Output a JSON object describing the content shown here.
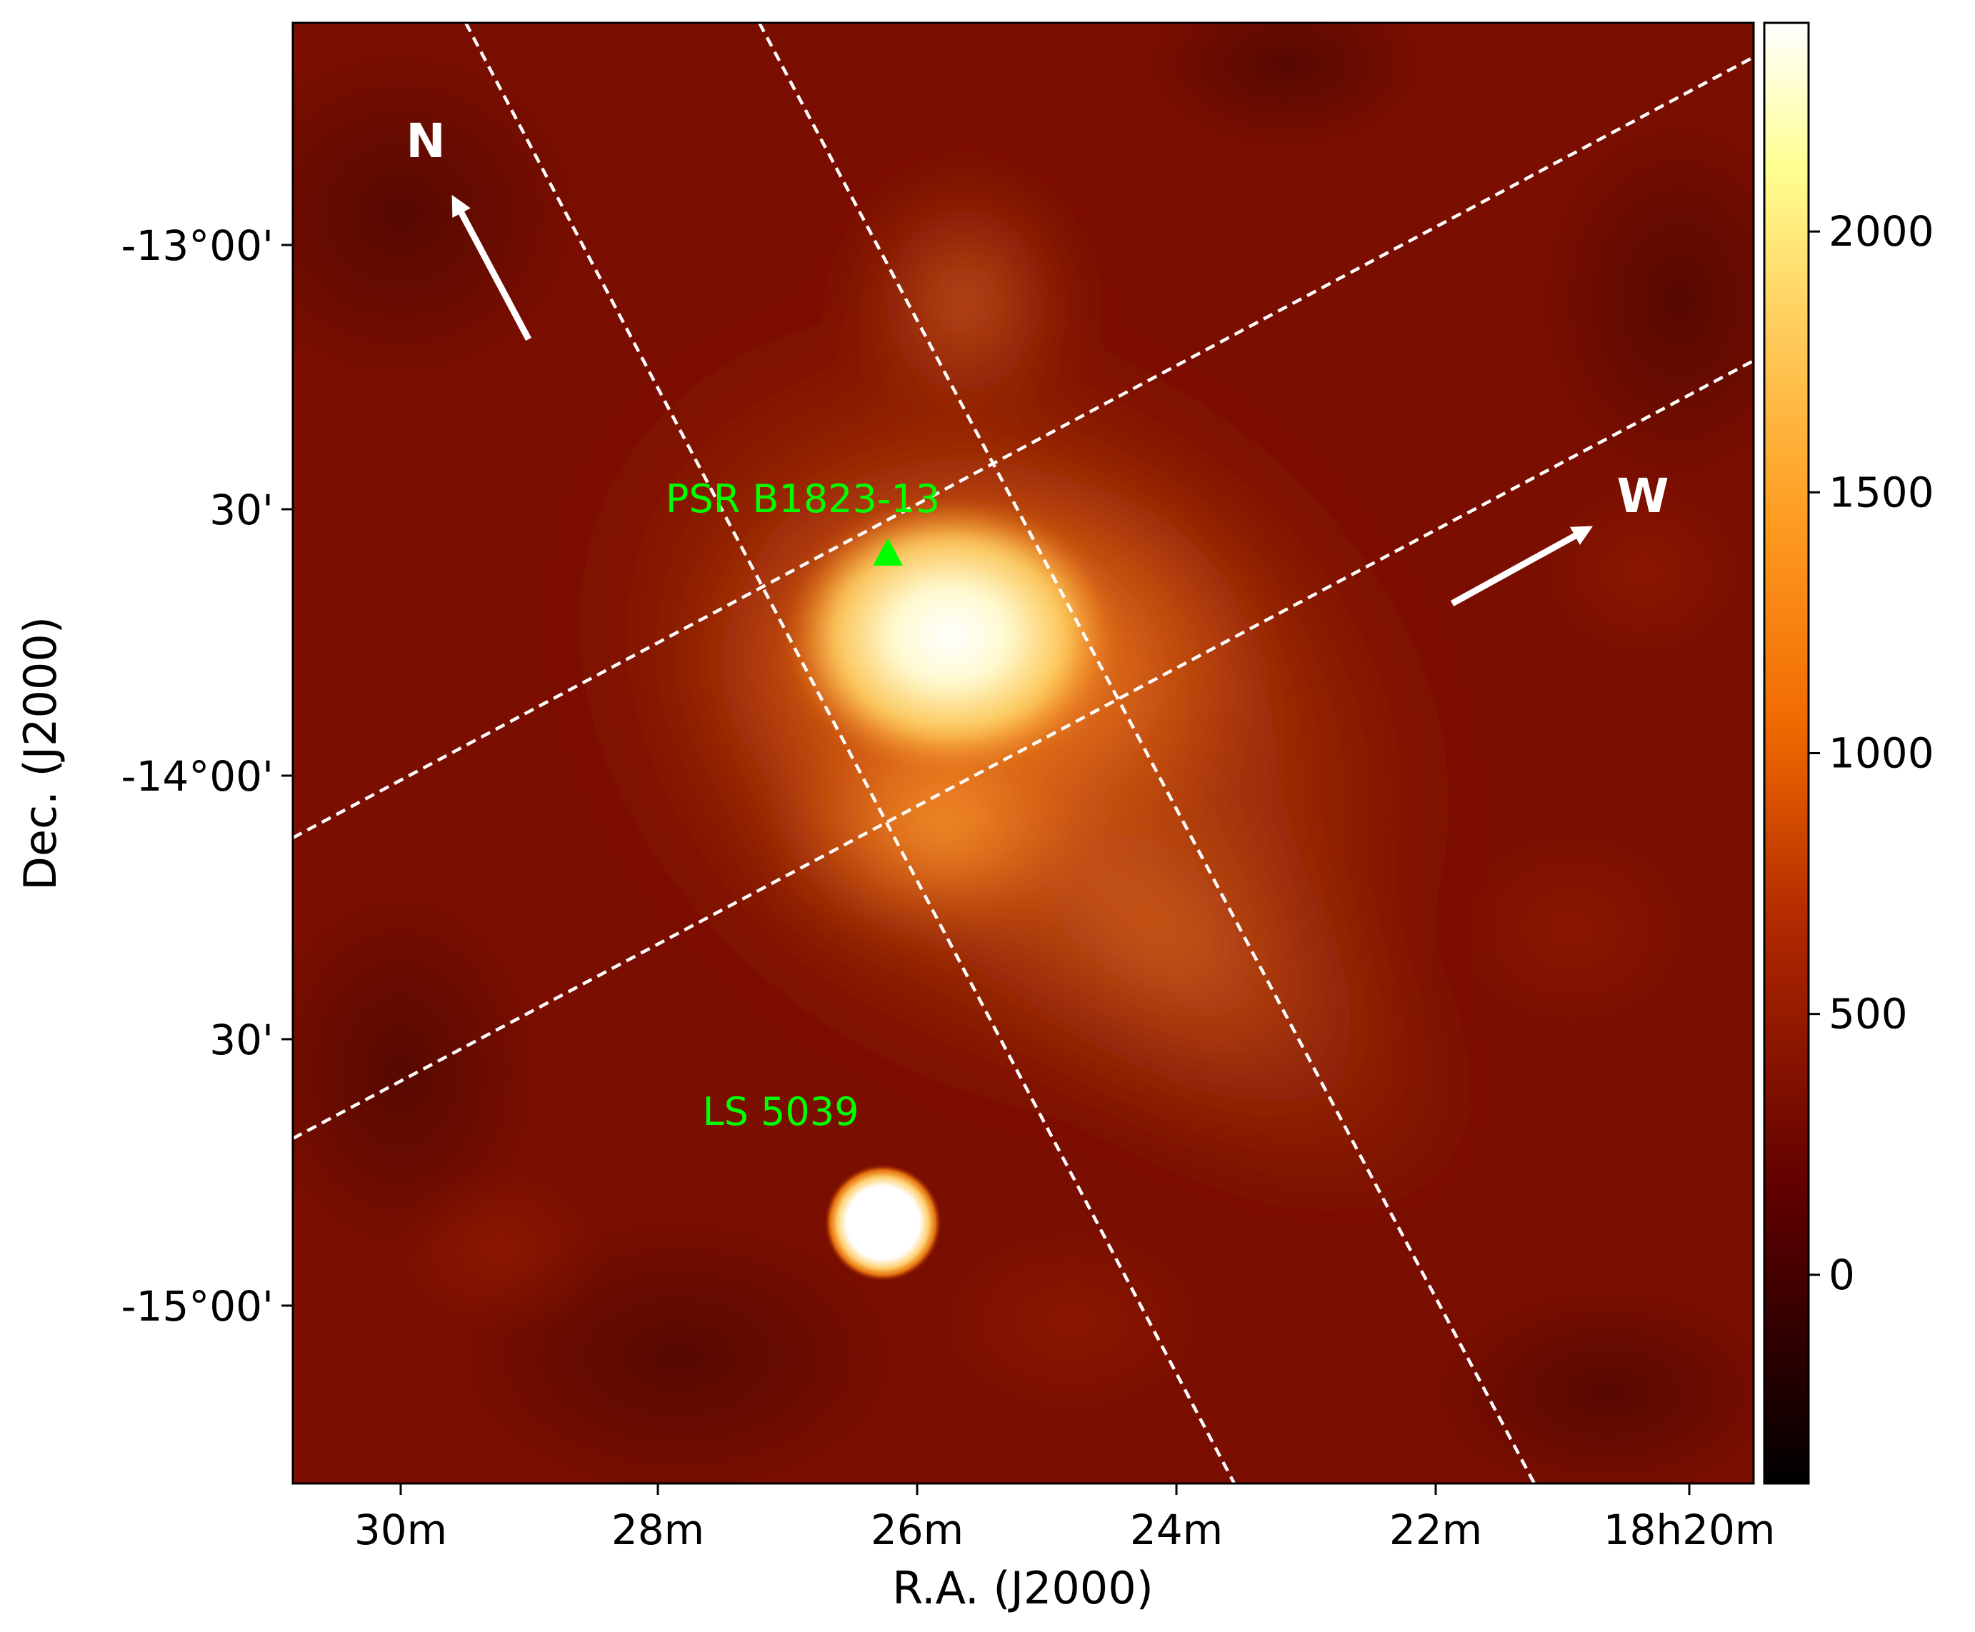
{
  "chart_data": {
    "type": "heatmap",
    "title": "",
    "xlabel": "R.A. (J2000)",
    "ylabel": "Dec. (J2000)",
    "x_ticks": [
      "30m",
      "28m",
      "26m",
      "24m",
      "22m",
      "18h20m"
    ],
    "y_ticks": [
      "-13°00'",
      "30'",
      "-14°00'",
      "30'",
      "-15°00'"
    ],
    "colorbar": {
      "ticks": [
        "2000",
        "1500",
        "1000",
        "500",
        "0"
      ],
      "tick_values": [
        2000,
        1500,
        1000,
        500,
        0
      ],
      "range": [
        -400,
        2400
      ],
      "colormap": "afmhot",
      "colors": [
        "#000000",
        "#7a0000",
        "#c84400",
        "#ff8c10",
        "#ffe070",
        "#ffffff"
      ]
    },
    "sources": [
      {
        "label": "PSR B1823-13",
        "marker": "triangle",
        "color": "#00ff00"
      },
      {
        "label": "LS 5039",
        "marker": "none",
        "color": "#00ff00"
      }
    ],
    "direction_labels": {
      "north": "N",
      "west": "W"
    },
    "grid": "off",
    "overlay": "dashed white rectangular regions"
  }
}
